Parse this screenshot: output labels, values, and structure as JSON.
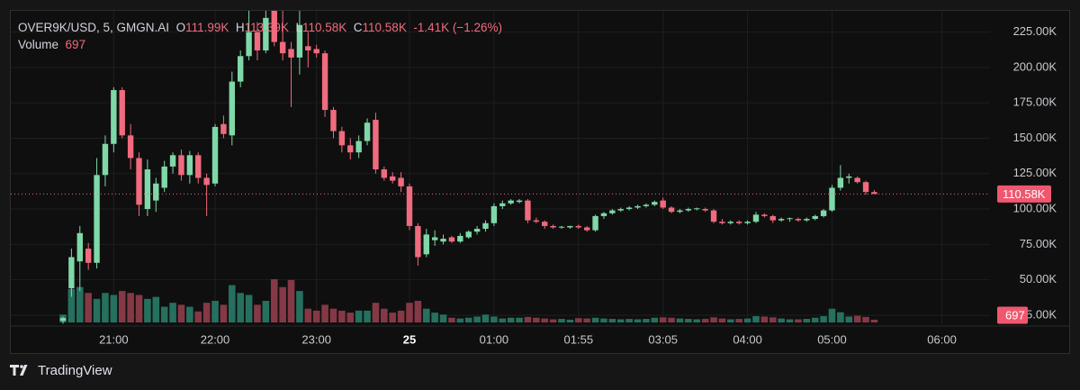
{
  "chart_data": {
    "type": "candlestick",
    "symbol": "OVER9K/USD, 5, GMGN.AI",
    "legend_fields": [
      {
        "key": "O",
        "value": "111.99K"
      },
      {
        "key": "H",
        "value": "113.39K"
      },
      {
        "key": "L",
        "value": "110.58K"
      },
      {
        "key": "C",
        "value": "110.58K"
      }
    ],
    "change": "-1.41K (−1.26%)",
    "volume_label": "Volume",
    "up_color": "#7fd8a8",
    "down_color": "#f06b7e",
    "volume_up_color": "#25705f",
    "volume_down_color": "#853845",
    "grid": true,
    "categories": [
      null,
      null,
      null,
      null,
      null,
      null,
      "21:00",
      null,
      null,
      null,
      null,
      null,
      null,
      null,
      null,
      null,
      null,
      null,
      "22:00",
      null,
      null,
      null,
      null,
      null,
      null,
      null,
      null,
      null,
      null,
      null,
      "23:00",
      null,
      null,
      null,
      null,
      null,
      null,
      null,
      null,
      null,
      null,
      "25",
      null,
      null,
      null,
      null,
      null,
      null,
      null,
      null,
      null,
      "01:00",
      null,
      null,
      null,
      null,
      null,
      null,
      null,
      null,
      null,
      "01:55",
      null,
      null,
      null,
      null,
      null,
      null,
      null,
      null,
      null,
      "03:05",
      null,
      null,
      null,
      null,
      null,
      null,
      null,
      null,
      null,
      "04:00",
      null,
      null,
      null,
      null,
      null,
      null,
      null,
      null,
      null,
      "05:00",
      null,
      null,
      null,
      null,
      null,
      null,
      null,
      null,
      null,
      null,
      null,
      null,
      "06:00"
    ],
    "open": [
      21000,
      44000,
      63000,
      72000,
      62000,
      124000,
      146000,
      184000,
      152000,
      136000,
      100000,
      106000,
      115000,
      130000,
      138000,
      124000,
      138000,
      122000,
      118000,
      160000,
      152000,
      190000,
      208000,
      225000,
      212000,
      240000,
      218000,
      213000,
      207000,
      215000,
      213000,
      210000,
      170000,
      155000,
      145000,
      140000,
      148000,
      163000,
      128000,
      123000,
      122000,
      116000,
      88000,
      68000,
      78000,
      77000,
      80000,
      77000,
      80000,
      84000,
      86000,
      90000,
      102000,
      104000,
      105000,
      106000,
      92000,
      91000,
      88000,
      87000,
      87000,
      88000,
      87000,
      85000,
      95000,
      97000,
      99000,
      100000,
      101000,
      102000,
      103000,
      106000,
      101000,
      98000,
      99000,
      100000,
      100000,
      99000,
      91000,
      90000,
      91000,
      90000,
      91000,
      96000,
      95000,
      92000,
      93000,
      93000,
      92000,
      93000,
      95000,
      99000,
      115000,
      122000,
      122000,
      119000,
      111990,
      null,
      null,
      null,
      null,
      null,
      null,
      null,
      null
    ],
    "high": [
      24000,
      72000,
      88000,
      76000,
      136000,
      152000,
      186000,
      186000,
      160000,
      140000,
      135000,
      122000,
      134000,
      140000,
      142000,
      141000,
      140000,
      125000,
      160000,
      166000,
      197000,
      212000,
      240000,
      232000,
      240000,
      240000,
      240000,
      218000,
      240000,
      225000,
      216000,
      212000,
      172000,
      158000,
      150000,
      152000,
      164000,
      168000,
      130000,
      126000,
      126000,
      118000,
      90000,
      86000,
      85000,
      82000,
      81000,
      83000,
      85000,
      88000,
      92000,
      104000,
      106000,
      107000,
      107000,
      107000,
      94000,
      92000,
      89000,
      88000,
      88000,
      89000,
      88000,
      96000,
      98000,
      100000,
      101000,
      102000,
      103000,
      104000,
      106000,
      108000,
      102000,
      100000,
      101000,
      101000,
      101000,
      100000,
      93000,
      92000,
      92000,
      92000,
      98000,
      97000,
      96000,
      94000,
      94000,
      94000,
      94000,
      96000,
      100000,
      117000,
      131000,
      125000,
      123000,
      120000,
      113390,
      null,
      null,
      null,
      null,
      null,
      null,
      null,
      null
    ],
    "low": [
      19000,
      38000,
      42000,
      57000,
      58000,
      116000,
      140000,
      150000,
      128000,
      95000,
      95000,
      98000,
      112000,
      125000,
      120000,
      118000,
      118000,
      95000,
      116000,
      150000,
      145000,
      186000,
      205000,
      205000,
      210000,
      215000,
      205000,
      172000,
      195000,
      200000,
      207000,
      165000,
      150000,
      140000,
      135000,
      136000,
      145000,
      125000,
      120000,
      118000,
      112000,
      85000,
      60000,
      66000,
      74000,
      75000,
      76000,
      76000,
      79000,
      82000,
      84000,
      88000,
      100000,
      103000,
      104000,
      90000,
      90000,
      86000,
      86000,
      86000,
      86000,
      86000,
      84000,
      84000,
      93000,
      96000,
      98000,
      99000,
      100000,
      101000,
      102000,
      100000,
      97000,
      97000,
      98000,
      99000,
      98000,
      90000,
      89000,
      89000,
      89000,
      89000,
      90000,
      94000,
      90000,
      91000,
      91000,
      91000,
      91000,
      92000,
      94000,
      98000,
      113000,
      118000,
      118000,
      110000,
      110580,
      null,
      null,
      null,
      null,
      null,
      null,
      null,
      null
    ],
    "close": [
      23000,
      66000,
      83000,
      62000,
      124000,
      146000,
      184000,
      152000,
      136000,
      103000,
      128000,
      118000,
      130000,
      138000,
      124000,
      138000,
      122000,
      117000,
      158000,
      153000,
      190000,
      208000,
      225000,
      212000,
      235000,
      218000,
      210000,
      207000,
      230000,
      212000,
      210000,
      170000,
      155000,
      145000,
      140000,
      148000,
      161000,
      128000,
      122000,
      120000,
      116000,
      88000,
      66000,
      82000,
      80000,
      79000,
      77000,
      81000,
      84000,
      86000,
      90000,
      102000,
      104000,
      106000,
      106000,
      92000,
      91000,
      88000,
      87000,
      87500,
      88000,
      87000,
      85000,
      95000,
      97000,
      99000,
      100000,
      101000,
      102000,
      103000,
      105000,
      101000,
      98000,
      99000,
      100000,
      100500,
      99000,
      91000,
      90000,
      91000,
      90000,
      91000,
      96000,
      95000,
      92000,
      93000,
      93500,
      92000,
      93000,
      95000,
      99000,
      115000,
      122000,
      123000,
      119000,
      112000,
      110580,
      null,
      null,
      null,
      null,
      null,
      null,
      null,
      null
    ],
    "volume": [
      2000,
      8500,
      9000,
      7500,
      6000,
      7500,
      7000,
      8000,
      7500,
      7000,
      6000,
      6500,
      4000,
      5000,
      4500,
      4000,
      2800,
      5000,
      5500,
      4500,
      9500,
      7500,
      7000,
      4500,
      5500,
      11000,
      9000,
      10800,
      8000,
      3500,
      3000,
      4500,
      3500,
      3000,
      2500,
      3000,
      3000,
      5000,
      3500,
      2500,
      3000,
      5000,
      5500,
      3500,
      2500,
      2000,
      1200,
      1000,
      1200,
      1500,
      2000,
      1500,
      1000,
      1200,
      1200,
      1400,
      1200,
      1000,
      800,
      900,
      700,
      1100,
      1000,
      1200,
      1000,
      900,
      800,
      900,
      800,
      900,
      1200,
      1300,
      1200,
      1000,
      900,
      800,
      900,
      1300,
      1000,
      800,
      900,
      1000,
      1600,
      1500,
      1300,
      1000,
      800,
      800,
      900,
      1200,
      1600,
      3500,
      2600,
      1500,
      1700,
      1400,
      697,
      null,
      null,
      null,
      null,
      null,
      null,
      null,
      null
    ],
    "ylim": [
      18600,
      240000
    ],
    "yticks": [
      {
        "value": 25000,
        "label": "25.00K"
      },
      {
        "value": 50000,
        "label": "50.00K"
      },
      {
        "value": 75000,
        "label": "75.00K"
      },
      {
        "value": 100000,
        "label": "100.00K"
      },
      {
        "value": 125000,
        "label": "125.00K"
      },
      {
        "value": 150000,
        "label": "150.00K"
      },
      {
        "value": 175000,
        "label": "175.00K"
      },
      {
        "value": 200000,
        "label": "200.00K"
      },
      {
        "value": 225000,
        "label": "225.00K"
      }
    ],
    "footer": "TradingView"
  }
}
